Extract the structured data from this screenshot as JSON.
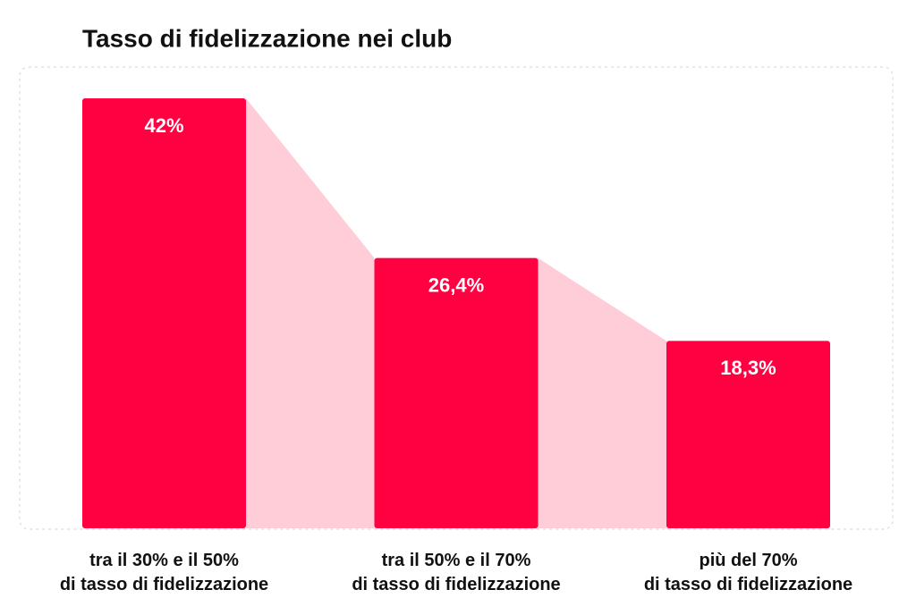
{
  "chart_data": {
    "type": "bar",
    "title": "Tasso di fidelizzazione nei club",
    "categories": [
      "tra il 30% e il 50%\ndi tasso di fidelizzazione",
      "tra il 50% e il 70%\ndi tasso di fidelizzazione",
      "più del 70%\ndi tasso di fidelizzazione"
    ],
    "values": [
      42,
      26.4,
      18.3
    ],
    "value_labels": [
      "42%",
      "26,4%",
      "18,3%"
    ],
    "color": "#ff0040",
    "connector_color": "#ffcdd8"
  }
}
